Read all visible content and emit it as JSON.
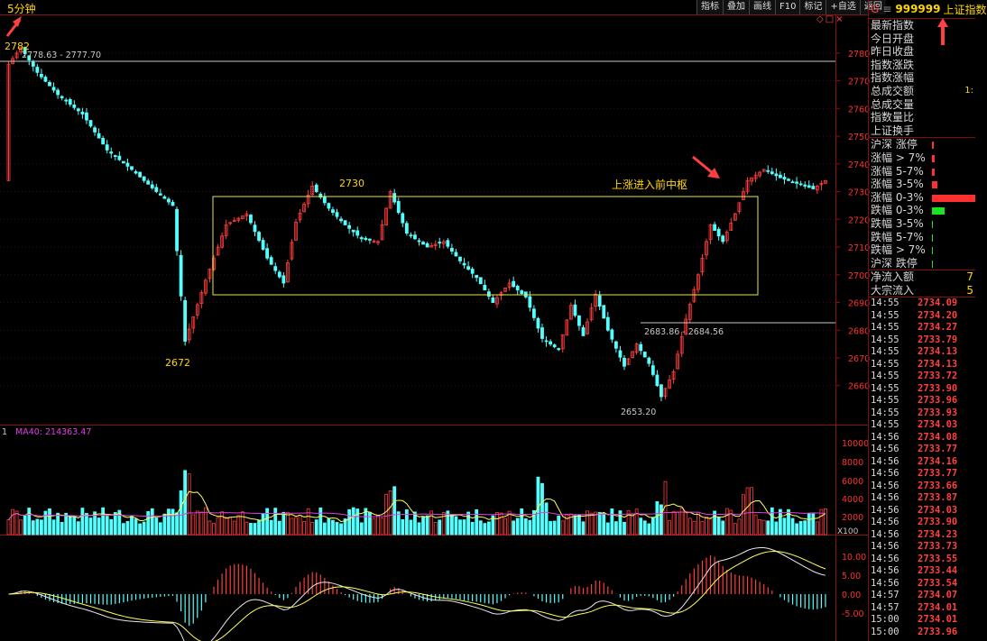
{
  "window": {
    "timeframe": "5分钟",
    "toolbar": [
      "指标",
      "叠加",
      "画线",
      "F10",
      "标记",
      "+自选",
      "返回"
    ],
    "small_icons": [
      "◇",
      "□",
      "×"
    ]
  },
  "colors": {
    "up": "#ff3d3d",
    "down": "#54ffff",
    "ma": "#ffff55",
    "ma40": "#e040e0",
    "box": "#e6e64c",
    "price_axis": "#ff3030"
  },
  "annotations": {
    "high_label": "2782",
    "resistance_range": "2778.63 - 2777.70",
    "peak_label": "2730",
    "low_label": "2672",
    "note": "上涨进入前中枢",
    "support_range": "2683.86 - 2684.56",
    "bottom_label": "2653.20"
  },
  "volume_header": {
    "prefix": "1",
    "ma_label": "MA40: 214363.47"
  },
  "volume_unit": "X100",
  "chart_data": {
    "type": "candlestick",
    "price_ticks": [
      2780,
      2770,
      2760,
      2750,
      2740,
      2730,
      2720,
      2710,
      2700,
      2690,
      2680,
      2670,
      2660
    ],
    "price_range": [
      2650,
      2783
    ],
    "volume_ticks": [
      "10000",
      "8000",
      "6000",
      "4000",
      "2000"
    ],
    "macd_ticks": [
      "10.00",
      "5.00",
      "0.00",
      "-5.00"
    ],
    "path": [
      [
        0,
        2776
      ],
      [
        3,
        2782
      ],
      [
        7,
        2773
      ],
      [
        12,
        2765
      ],
      [
        18,
        2758
      ],
      [
        24,
        2745
      ],
      [
        30,
        2738
      ],
      [
        36,
        2730
      ],
      [
        40,
        2725
      ],
      [
        43,
        2676
      ],
      [
        48,
        2698
      ],
      [
        53,
        2718
      ],
      [
        58,
        2722
      ],
      [
        63,
        2706
      ],
      [
        67,
        2697
      ],
      [
        70,
        2719
      ],
      [
        74,
        2732
      ],
      [
        78,
        2724
      ],
      [
        82,
        2718
      ],
      [
        86,
        2713
      ],
      [
        90,
        2712
      ],
      [
        93,
        2730
      ],
      [
        97,
        2715
      ],
      [
        102,
        2710
      ],
      [
        106,
        2712
      ],
      [
        110,
        2705
      ],
      [
        114,
        2699
      ],
      [
        118,
        2690
      ],
      [
        122,
        2697
      ],
      [
        126,
        2692
      ],
      [
        130,
        2677
      ],
      [
        134,
        2673
      ],
      [
        137,
        2689
      ],
      [
        140,
        2678
      ],
      [
        143,
        2693
      ],
      [
        146,
        2680
      ],
      [
        150,
        2667
      ],
      [
        153,
        2675
      ],
      [
        156,
        2668
      ],
      [
        159,
        2656
      ],
      [
        162,
        2665
      ],
      [
        165,
        2684
      ],
      [
        168,
        2700
      ],
      [
        171,
        2718
      ],
      [
        174,
        2712
      ],
      [
        177,
        2722
      ],
      [
        180,
        2734
      ],
      [
        184,
        2738
      ],
      [
        188,
        2735
      ],
      [
        192,
        2733
      ],
      [
        196,
        2731
      ],
      [
        199,
        2734
      ]
    ]
  },
  "quote_panel": {
    "header_code": "999999",
    "header_name": "上证指数",
    "header_mark": "G",
    "fields": [
      "最新指数",
      "今日开盘",
      "昨日收盘",
      "指数涨跌",
      "指数涨幅",
      "总成交额",
      "总成交量",
      "指数量比",
      "上证换手"
    ],
    "total_amount_partial": "1:",
    "breadth": [
      "沪深 涨停",
      "涨幅 > 7%",
      "涨幅 5-7%",
      "涨幅 3-5%",
      "涨幅 0-3%",
      "跌幅 0-3%",
      "跌幅 3-5%",
      "跌幅 5-7%",
      "跌幅 > 7%",
      "沪深 跌停"
    ],
    "flows": [
      {
        "label": "净流入额",
        "value": "7"
      },
      {
        "label": "大宗流入",
        "value": "5"
      }
    ],
    "ticks": [
      {
        "time": "14:55",
        "price": "2734.09"
      },
      {
        "time": "14:55",
        "price": "2734.20"
      },
      {
        "time": "14:55",
        "price": "2734.27"
      },
      {
        "time": "14:55",
        "price": "2733.79"
      },
      {
        "time": "14:55",
        "price": "2734.13"
      },
      {
        "time": "14:55",
        "price": "2734.13"
      },
      {
        "time": "14:55",
        "price": "2733.72"
      },
      {
        "time": "14:55",
        "price": "2733.90"
      },
      {
        "time": "14:55",
        "price": "2733.96"
      },
      {
        "time": "14:55",
        "price": "2733.93"
      },
      {
        "time": "14:55",
        "price": "2734.03"
      },
      {
        "time": "14:56",
        "price": "2734.08"
      },
      {
        "time": "14:56",
        "price": "2733.77"
      },
      {
        "time": "14:56",
        "price": "2734.16"
      },
      {
        "time": "14:56",
        "price": "2733.77"
      },
      {
        "time": "14:56",
        "price": "2733.66"
      },
      {
        "time": "14:56",
        "price": "2733.87"
      },
      {
        "time": "14:56",
        "price": "2734.03"
      },
      {
        "time": "14:56",
        "price": "2733.90"
      },
      {
        "time": "14:56",
        "price": "2734.23"
      },
      {
        "time": "14:56",
        "price": "2733.73"
      },
      {
        "time": "14:56",
        "price": "2733.55"
      },
      {
        "time": "14:56",
        "price": "2733.44"
      },
      {
        "time": "14:56",
        "price": "2733.54"
      },
      {
        "time": "14:57",
        "price": "2734.07"
      },
      {
        "time": "14:57",
        "price": "2734.01"
      },
      {
        "time": "15:00",
        "price": "2734.01"
      },
      {
        "time": "15:00",
        "price": "2733.96"
      }
    ]
  }
}
